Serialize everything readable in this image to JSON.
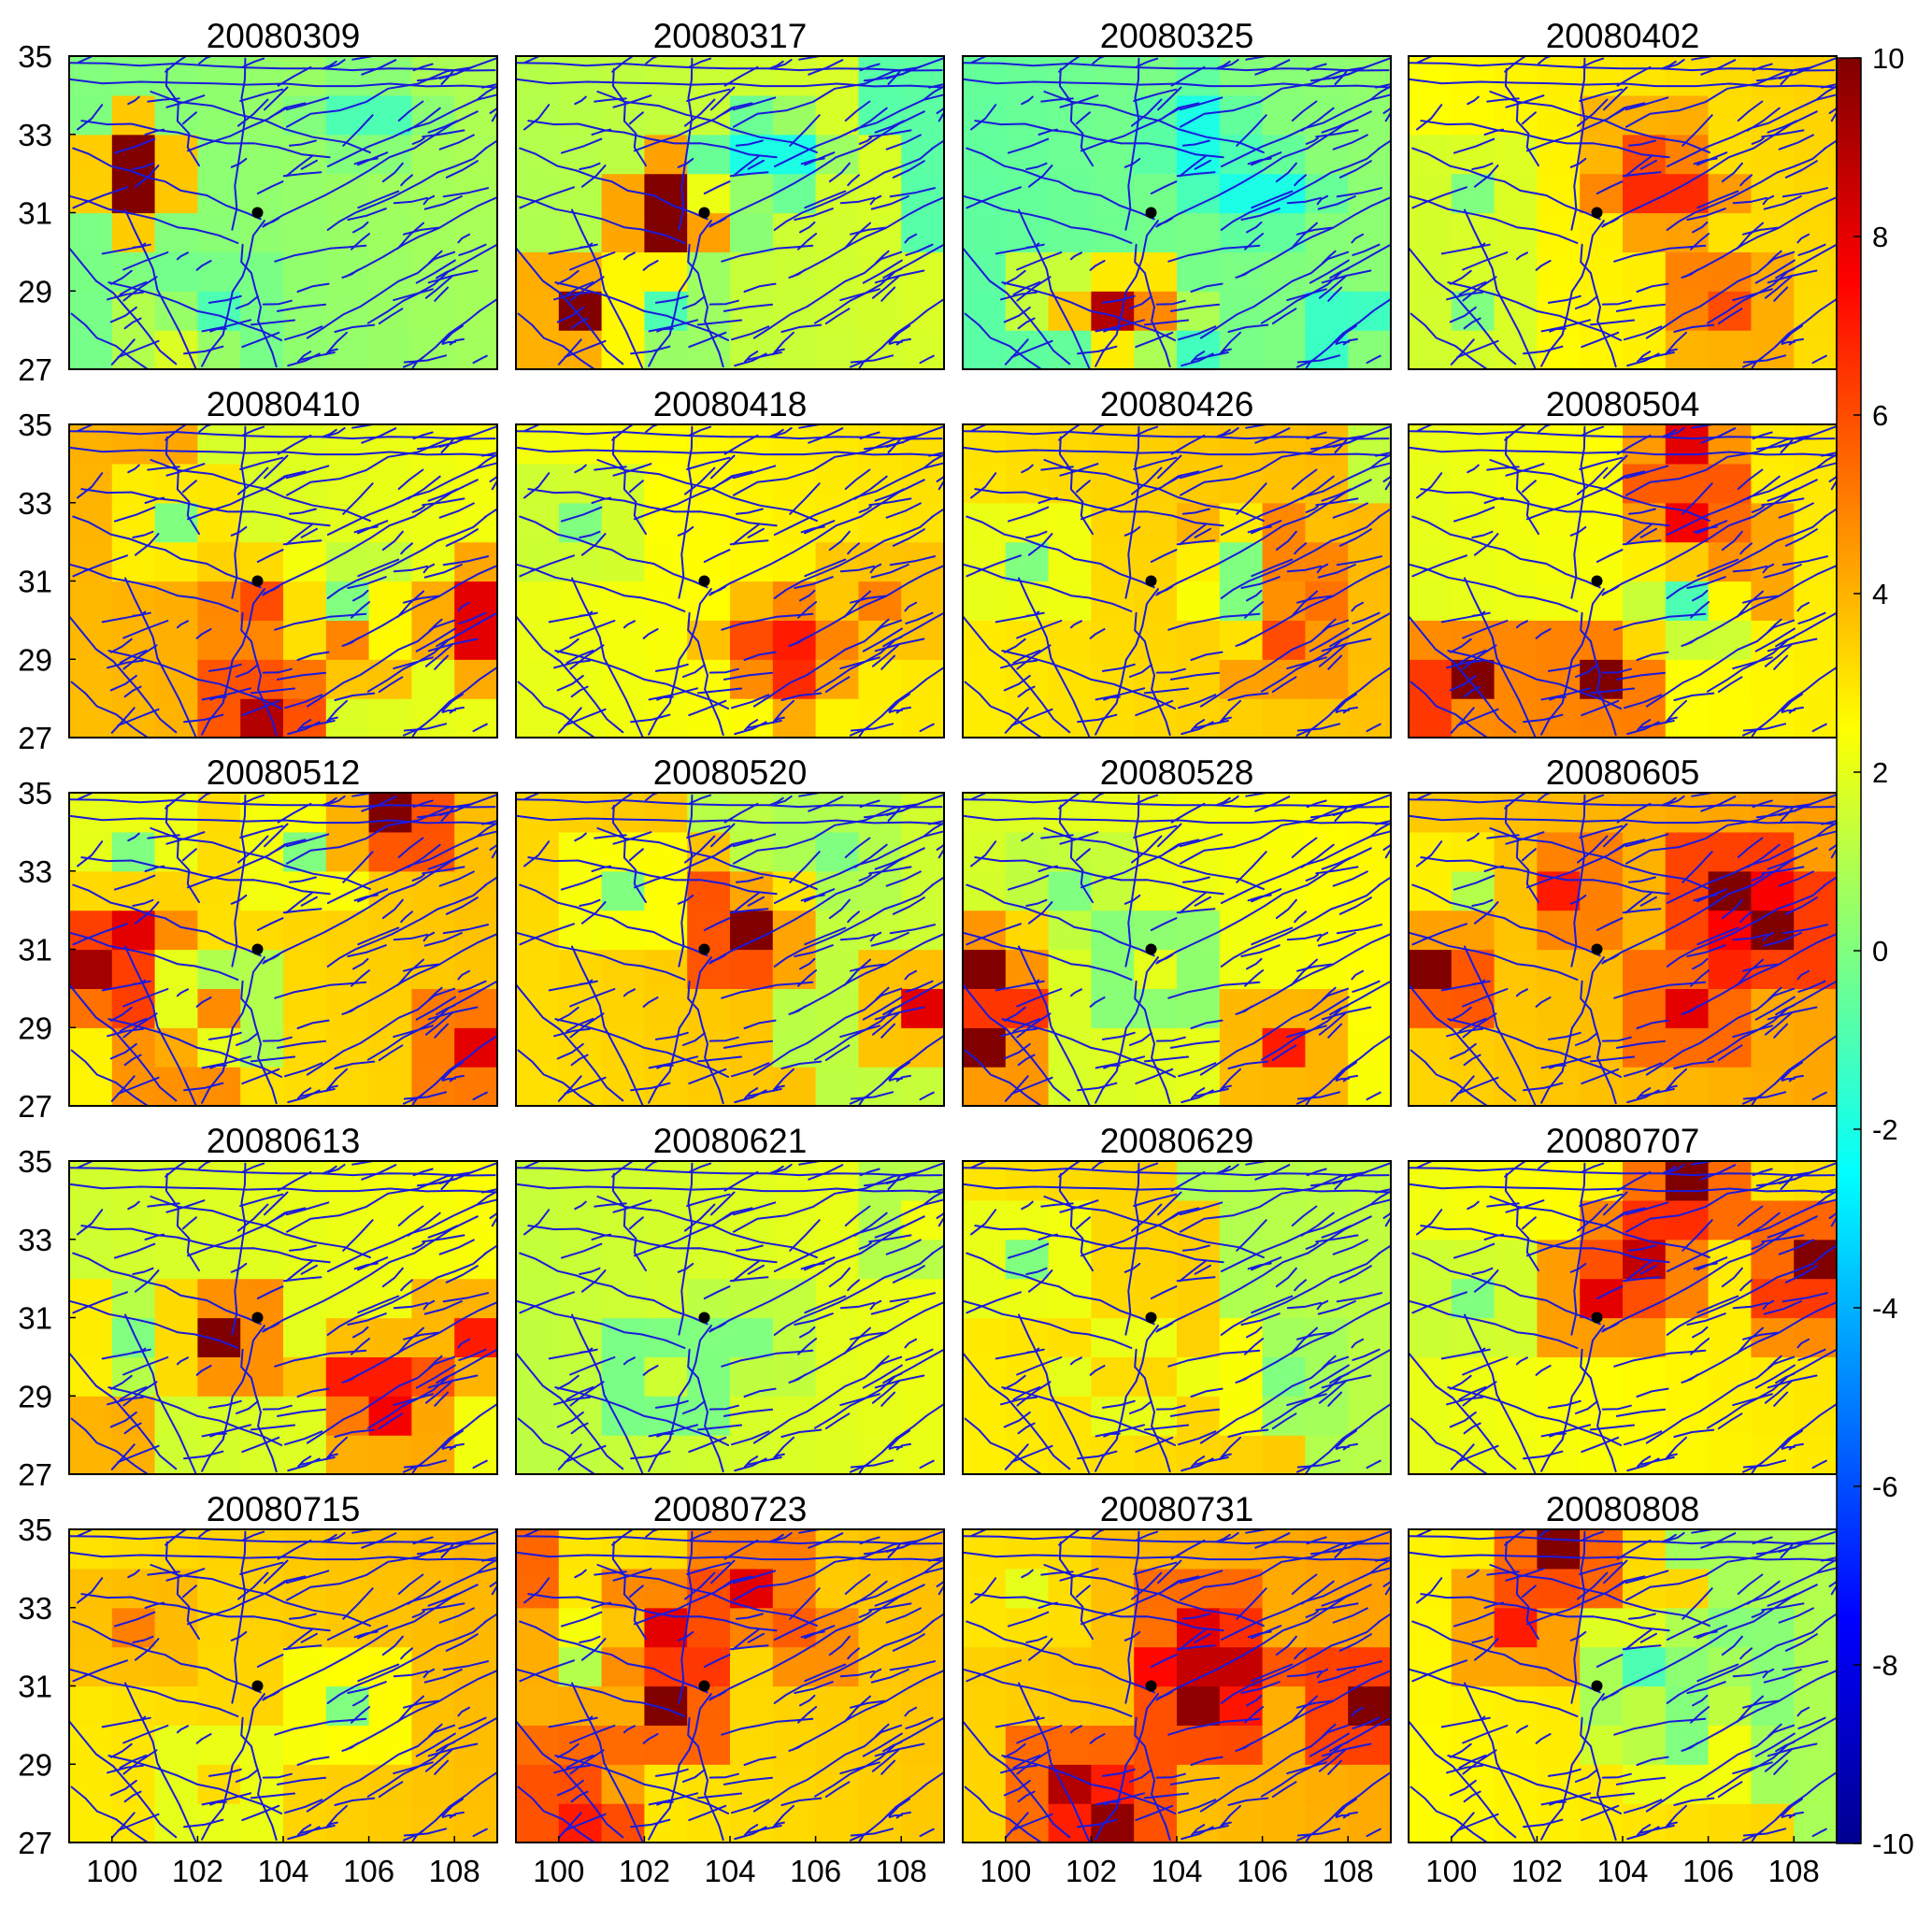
{
  "chart_data": {
    "type": "heatmap",
    "panel_titles": [
      "20080309",
      "20080317",
      "20080325",
      "20080402",
      "20080410",
      "20080418",
      "20080426",
      "20080504",
      "20080512",
      "20080520",
      "20080528",
      "20080605",
      "20080613",
      "20080621",
      "20080629",
      "20080707",
      "20080715",
      "20080723",
      "20080731",
      "20080808"
    ],
    "x_ticks": [
      "100",
      "102",
      "104",
      "106",
      "108"
    ],
    "x_tick_values": [
      100,
      102,
      104,
      106,
      108
    ],
    "y_ticks": [
      "27",
      "29",
      "31",
      "33",
      "35"
    ],
    "y_tick_values": [
      27,
      29,
      31,
      33,
      35
    ],
    "xlim": [
      99,
      109
    ],
    "ylim": [
      27,
      35
    ],
    "grid_lon_start": 99,
    "grid_lat_start": 27,
    "cell_size_deg": 1,
    "grid_cols": 10,
    "grid_rows": 8,
    "colorbar": {
      "range": [
        -10,
        10
      ],
      "ticks": [
        "10",
        "8",
        "6",
        "4",
        "2",
        "0",
        "-2",
        "-4",
        "-6",
        "-8",
        "-10"
      ],
      "tick_values": [
        10,
        8,
        6,
        4,
        2,
        0,
        -2,
        -4,
        -6,
        -8,
        -10
      ],
      "colormap": "jet"
    },
    "epicenter": {
      "lon": 103.4,
      "lat": 31.0
    },
    "fault_color": "#1a1adc",
    "grid": false
  }
}
